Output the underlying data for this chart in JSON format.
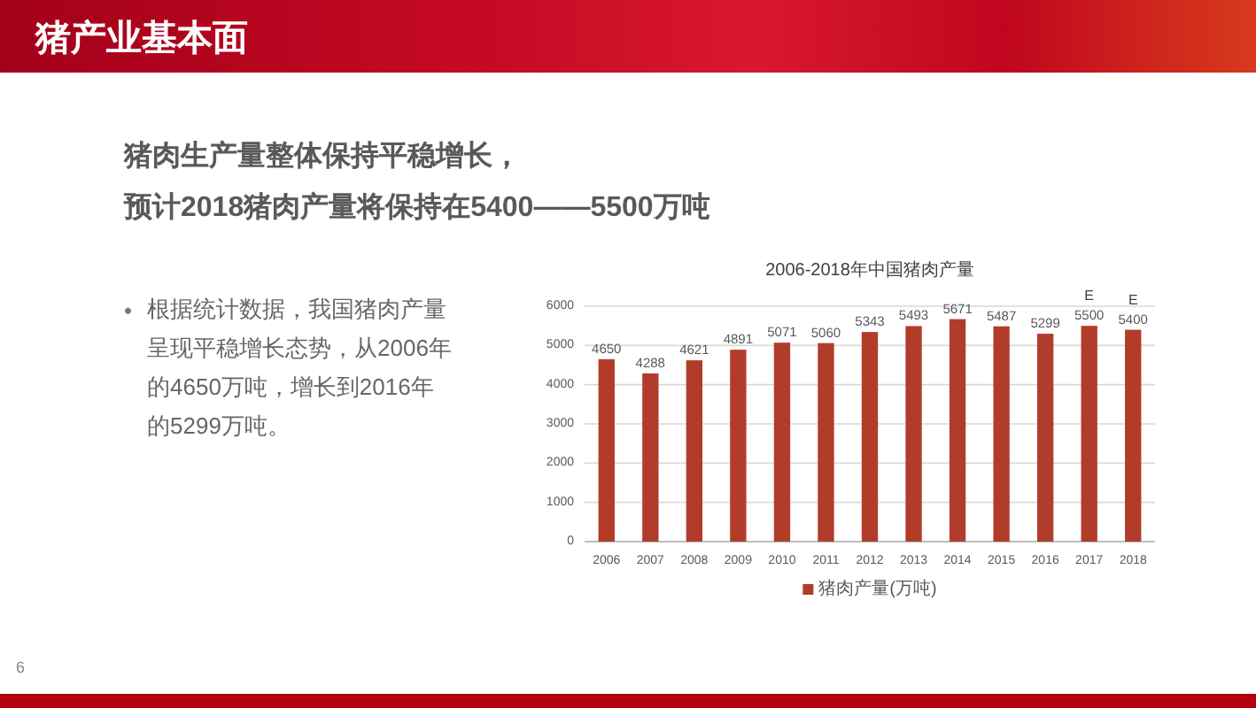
{
  "chart_data": {
    "type": "bar",
    "title": "2006-2018年中国猪肉产量",
    "categories": [
      "2006",
      "2007",
      "2008",
      "2009",
      "2010",
      "2011",
      "2012",
      "2013",
      "2014",
      "2015",
      "2016",
      "2017",
      "2018"
    ],
    "series": [
      {
        "name": "猪肉产量(万吨)",
        "color": "#b23c2a",
        "values": [
          4650,
          4288,
          4621,
          4891,
          5071,
          5060,
          5343,
          5493,
          5671,
          5487,
          5299,
          5500,
          5400
        ]
      }
    ],
    "ylim": [
      0,
      6000
    ],
    "yticks": [
      0,
      1000,
      2000,
      3000,
      4000,
      5000,
      6000
    ],
    "grid": "y",
    "legend": "bottom",
    "data_labels": true,
    "annotations": [
      "猪产业基本面",
      "猪肉生产量整体保持平稳增长，",
      "预计2018猪肉产量将保持在5400——5500万吨",
      "•",
      "根据统计数据，我国猪肉产量呈现平稳增长态势，从2006年的4650万吨，增长到2016年的5299万吨。",
      "6",
      {
        "text": "E",
        "x": "2017",
        "y": 5500
      },
      {
        "text": "E",
        "x": "2018",
        "y": 5400
      }
    ]
  }
}
